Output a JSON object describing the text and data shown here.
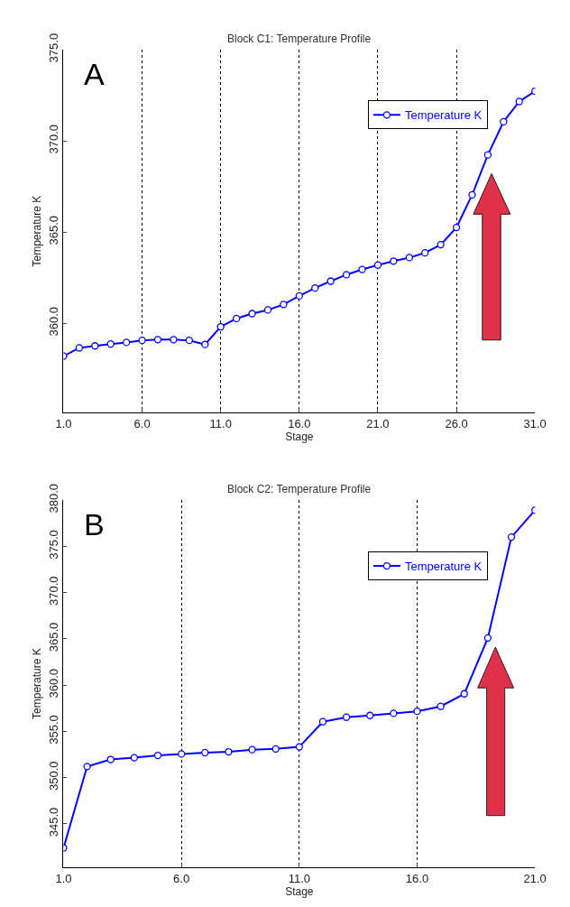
{
  "chart_data": [
    {
      "type": "line",
      "title": "Block C1: Temperature Profile",
      "xlabel": "Stage",
      "ylabel": "Temperature K",
      "annotations": [
        "A"
      ],
      "x": [
        1,
        2,
        3,
        4,
        5,
        6,
        7,
        8,
        9,
        10,
        11,
        12,
        13,
        14,
        15,
        16,
        17,
        18,
        19,
        20,
        21,
        22,
        23,
        24,
        25,
        26,
        27,
        28,
        29,
        30,
        31
      ],
      "series": [
        {
          "name": "Temperature K",
          "color": "#0000ff",
          "values": [
            358.2,
            358.65,
            358.76,
            358.86,
            358.95,
            359.06,
            359.1,
            359.1,
            359.06,
            358.84,
            359.81,
            360.26,
            360.53,
            360.73,
            361.03,
            361.5,
            361.93,
            362.31,
            362.66,
            362.95,
            363.19,
            363.41,
            363.6,
            363.86,
            364.31,
            365.25,
            367.04,
            369.23,
            371.05,
            372.16,
            372.72
          ]
        }
      ],
      "xlim": [
        1,
        31
      ],
      "ylim": [
        355.1,
        375
      ],
      "xticks": [
        {
          "value": 1,
          "label": "1.0"
        },
        {
          "value": 6,
          "label": "6.0"
        },
        {
          "value": 11,
          "label": "11.0"
        },
        {
          "value": 16,
          "label": "16.0"
        },
        {
          "value": 21,
          "label": "21.0"
        },
        {
          "value": 26,
          "label": "26.0"
        },
        {
          "value": 31,
          "label": "31.0"
        }
      ],
      "yticks": [
        {
          "value": 360,
          "label": "360.0"
        },
        {
          "value": 365,
          "label": "365.0"
        },
        {
          "value": 370,
          "label": "370.0"
        },
        {
          "value": 375,
          "label": "375.0"
        }
      ],
      "grid": "x",
      "legend": "top right",
      "marker": "circle",
      "line_style": "solid"
    },
    {
      "type": "line",
      "title": "Block C2: Temperature Profile",
      "xlabel": "Stage",
      "ylabel": "Temperature K",
      "annotations": [
        "B"
      ],
      "x": [
        1,
        2,
        3,
        4,
        5,
        6,
        7,
        8,
        9,
        10,
        11,
        12,
        13,
        14,
        15,
        16,
        17,
        18,
        19,
        20,
        21
      ],
      "series": [
        {
          "name": "Temperature K",
          "color": "#0000ff",
          "values": [
            342.4,
            351.2,
            351.96,
            352.15,
            352.4,
            352.56,
            352.7,
            352.79,
            353.02,
            353.1,
            353.32,
            356.04,
            356.53,
            356.72,
            356.95,
            357.17,
            357.7,
            359.06,
            365.1,
            376.0,
            378.9
          ]
        }
      ],
      "xlim": [
        1,
        21
      ],
      "ylim": [
        340.3,
        380
      ],
      "xticks": [
        {
          "value": 1,
          "label": "1.0"
        },
        {
          "value": 6,
          "label": "6.0"
        },
        {
          "value": 11,
          "label": "11.0"
        },
        {
          "value": 16,
          "label": "16.0"
        },
        {
          "value": 21,
          "label": "21.0"
        }
      ],
      "yticks": [
        {
          "value": 345,
          "label": "345.0"
        },
        {
          "value": 350,
          "label": "350.0"
        },
        {
          "value": 355,
          "label": "355.0"
        },
        {
          "value": 360,
          "label": "360.0"
        },
        {
          "value": 365,
          "label": "365.0"
        },
        {
          "value": 370,
          "label": "370.0"
        },
        {
          "value": 375,
          "label": "375.0"
        },
        {
          "value": 380,
          "label": "380.0"
        }
      ],
      "grid": "x",
      "legend": "top right",
      "marker": "circle",
      "line_style": "solid"
    }
  ]
}
